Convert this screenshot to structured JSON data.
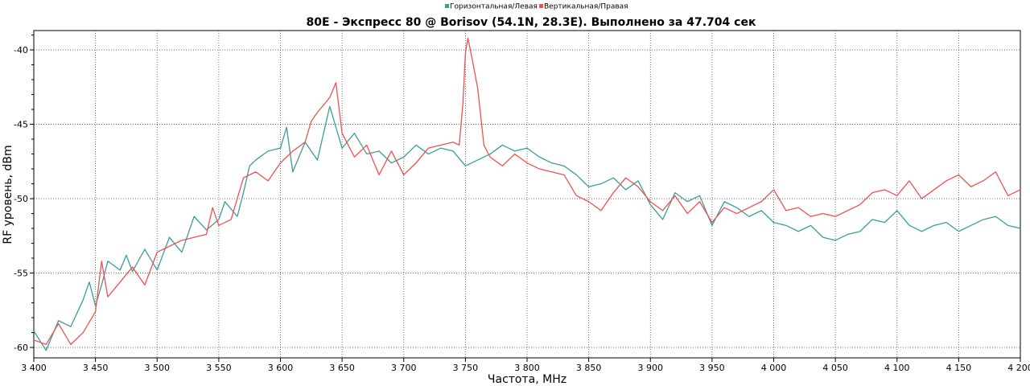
{
  "chart_data": {
    "type": "line",
    "title": "80E - Экспресс 80 @ Borisov (54.1N, 28.3E). Выполнено за 47.704 сек",
    "xlabel": "Частота, MHz",
    "ylabel": "RF уровень, dBm",
    "xlim": [
      3400,
      4200
    ],
    "ylim": [
      -60.7,
      -38.7
    ],
    "x_ticks": [
      3400,
      3450,
      3500,
      3550,
      3600,
      3650,
      3700,
      3750,
      3800,
      3850,
      3900,
      3950,
      4000,
      4050,
      4100,
      4150,
      4200
    ],
    "x_tick_labels": [
      "3 400",
      "3 450",
      "3 500",
      "3 550",
      "3 600",
      "3 650",
      "3 700",
      "3 750",
      "3 800",
      "3 850",
      "3 900",
      "3 950",
      "4 000",
      "4 050",
      "4 100",
      "4 150",
      "4 200"
    ],
    "y_ticks": [
      -40,
      -45,
      -50,
      -55,
      -60
    ],
    "y_tick_labels": [
      "-40",
      "-45",
      "-50",
      "-55",
      "-60"
    ],
    "grid": true,
    "legend_position": "top-center",
    "series": [
      {
        "name": "Горизонтальная/Левая",
        "color": "#3a9d9b",
        "points": [
          [
            3400,
            -58.9
          ],
          [
            3410,
            -60.2
          ],
          [
            3420,
            -58.2
          ],
          [
            3430,
            -58.6
          ],
          [
            3440,
            -56.8
          ],
          [
            3445,
            -55.6
          ],
          [
            3450,
            -57.2
          ],
          [
            3455,
            -55.8
          ],
          [
            3460,
            -54.2
          ],
          [
            3470,
            -54.8
          ],
          [
            3475,
            -53.8
          ],
          [
            3480,
            -54.9
          ],
          [
            3490,
            -53.4
          ],
          [
            3500,
            -54.8
          ],
          [
            3510,
            -52.6
          ],
          [
            3520,
            -53.6
          ],
          [
            3530,
            -51.2
          ],
          [
            3540,
            -52.1
          ],
          [
            3550,
            -51.4
          ],
          [
            3555,
            -50.2
          ],
          [
            3565,
            -51.2
          ],
          [
            3570,
            -49.6
          ],
          [
            3575,
            -47.8
          ],
          [
            3580,
            -47.4
          ],
          [
            3590,
            -46.8
          ],
          [
            3600,
            -46.6
          ],
          [
            3605,
            -45.2
          ],
          [
            3610,
            -48.2
          ],
          [
            3620,
            -46.2
          ],
          [
            3630,
            -47.4
          ],
          [
            3640,
            -43.8
          ],
          [
            3645,
            -45.2
          ],
          [
            3650,
            -46.6
          ],
          [
            3660,
            -45.6
          ],
          [
            3670,
            -47.0
          ],
          [
            3680,
            -46.8
          ],
          [
            3690,
            -47.6
          ],
          [
            3700,
            -47.2
          ],
          [
            3710,
            -46.4
          ],
          [
            3720,
            -47.0
          ],
          [
            3730,
            -46.6
          ],
          [
            3740,
            -46.8
          ],
          [
            3750,
            -47.8
          ],
          [
            3760,
            -47.4
          ],
          [
            3770,
            -47.0
          ],
          [
            3780,
            -46.4
          ],
          [
            3790,
            -46.8
          ],
          [
            3800,
            -46.6
          ],
          [
            3810,
            -47.2
          ],
          [
            3820,
            -47.6
          ],
          [
            3830,
            -47.8
          ],
          [
            3840,
            -48.4
          ],
          [
            3850,
            -49.2
          ],
          [
            3860,
            -49.0
          ],
          [
            3870,
            -48.6
          ],
          [
            3880,
            -49.4
          ],
          [
            3890,
            -48.8
          ],
          [
            3900,
            -50.4
          ],
          [
            3910,
            -51.4
          ],
          [
            3920,
            -49.6
          ],
          [
            3930,
            -50.2
          ],
          [
            3940,
            -49.8
          ],
          [
            3950,
            -51.8
          ],
          [
            3960,
            -50.2
          ],
          [
            3970,
            -50.6
          ],
          [
            3980,
            -51.2
          ],
          [
            3990,
            -50.8
          ],
          [
            4000,
            -51.6
          ],
          [
            4010,
            -51.8
          ],
          [
            4020,
            -52.2
          ],
          [
            4030,
            -51.8
          ],
          [
            4040,
            -52.6
          ],
          [
            4050,
            -52.8
          ],
          [
            4060,
            -52.4
          ],
          [
            4070,
            -52.2
          ],
          [
            4080,
            -51.4
          ],
          [
            4090,
            -51.6
          ],
          [
            4100,
            -50.8
          ],
          [
            4110,
            -51.8
          ],
          [
            4120,
            -52.2
          ],
          [
            4130,
            -51.8
          ],
          [
            4140,
            -51.6
          ],
          [
            4150,
            -52.2
          ],
          [
            4160,
            -51.8
          ],
          [
            4170,
            -51.4
          ],
          [
            4180,
            -51.2
          ],
          [
            4190,
            -51.8
          ],
          [
            4200,
            -52.0
          ]
        ]
      },
      {
        "name": "Вертикальная/Правая",
        "color": "#f05050",
        "points": [
          [
            3400,
            -59.5
          ],
          [
            3410,
            -59.8
          ],
          [
            3420,
            -58.4
          ],
          [
            3430,
            -59.8
          ],
          [
            3440,
            -59.0
          ],
          [
            3450,
            -57.6
          ],
          [
            3455,
            -54.2
          ],
          [
            3460,
            -56.6
          ],
          [
            3470,
            -55.6
          ],
          [
            3480,
            -54.6
          ],
          [
            3490,
            -55.8
          ],
          [
            3500,
            -53.6
          ],
          [
            3510,
            -53.2
          ],
          [
            3520,
            -52.8
          ],
          [
            3530,
            -52.6
          ],
          [
            3540,
            -52.4
          ],
          [
            3545,
            -50.6
          ],
          [
            3550,
            -51.8
          ],
          [
            3560,
            -51.4
          ],
          [
            3570,
            -48.6
          ],
          [
            3580,
            -48.2
          ],
          [
            3590,
            -48.8
          ],
          [
            3600,
            -47.6
          ],
          [
            3610,
            -46.8
          ],
          [
            3620,
            -46.2
          ],
          [
            3625,
            -44.8
          ],
          [
            3630,
            -44.2
          ],
          [
            3640,
            -43.2
          ],
          [
            3645,
            -42.2
          ],
          [
            3650,
            -45.6
          ],
          [
            3660,
            -47.2
          ],
          [
            3670,
            -46.4
          ],
          [
            3680,
            -48.4
          ],
          [
            3690,
            -46.8
          ],
          [
            3700,
            -48.4
          ],
          [
            3710,
            -47.6
          ],
          [
            3720,
            -46.6
          ],
          [
            3730,
            -46.4
          ],
          [
            3740,
            -46.2
          ],
          [
            3745,
            -46.4
          ],
          [
            3748,
            -43.6
          ],
          [
            3750,
            -40.2
          ],
          [
            3752,
            -39.2
          ],
          [
            3755,
            -40.4
          ],
          [
            3760,
            -42.6
          ],
          [
            3765,
            -46.4
          ],
          [
            3770,
            -47.2
          ],
          [
            3780,
            -47.8
          ],
          [
            3790,
            -47.0
          ],
          [
            3800,
            -47.6
          ],
          [
            3810,
            -48.0
          ],
          [
            3820,
            -48.2
          ],
          [
            3830,
            -48.4
          ],
          [
            3840,
            -49.8
          ],
          [
            3850,
            -50.2
          ],
          [
            3860,
            -50.8
          ],
          [
            3870,
            -49.6
          ],
          [
            3880,
            -48.6
          ],
          [
            3890,
            -49.2
          ],
          [
            3900,
            -50.2
          ],
          [
            3910,
            -50.8
          ],
          [
            3920,
            -49.8
          ],
          [
            3930,
            -51.0
          ],
          [
            3940,
            -50.2
          ],
          [
            3950,
            -51.6
          ],
          [
            3960,
            -50.6
          ],
          [
            3970,
            -51.0
          ],
          [
            3980,
            -50.6
          ],
          [
            3990,
            -50.2
          ],
          [
            4000,
            -49.4
          ],
          [
            4010,
            -50.8
          ],
          [
            4020,
            -50.6
          ],
          [
            4030,
            -51.2
          ],
          [
            4040,
            -51.0
          ],
          [
            4050,
            -51.2
          ],
          [
            4060,
            -50.8
          ],
          [
            4070,
            -50.4
          ],
          [
            4080,
            -49.6
          ],
          [
            4090,
            -49.4
          ],
          [
            4100,
            -49.8
          ],
          [
            4110,
            -48.8
          ],
          [
            4120,
            -50.0
          ],
          [
            4130,
            -49.4
          ],
          [
            4140,
            -48.8
          ],
          [
            4150,
            -48.4
          ],
          [
            4160,
            -49.2
          ],
          [
            4170,
            -48.8
          ],
          [
            4180,
            -48.2
          ],
          [
            4190,
            -49.8
          ],
          [
            4200,
            -49.4
          ]
        ]
      }
    ]
  }
}
